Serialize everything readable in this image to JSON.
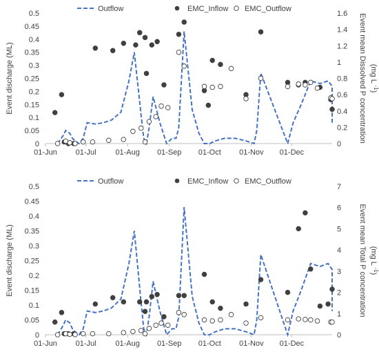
{
  "chart_data": [
    {
      "type": "line",
      "legend": [
        "Outflow",
        "EMC_Inflow",
        "EMC_Outflow"
      ],
      "legend_position": "top",
      "x_ticks": [
        "01-Jun",
        "01-Jul",
        "01-Aug",
        "01-Sep",
        "01-Oct",
        "01-Nov",
        "01-Dec"
      ],
      "xlim": [
        "2019-06-01",
        "2019-12-31"
      ],
      "ylabel": "Event discharge (ML)",
      "ylim": [
        0,
        0.5
      ],
      "y_ticks": [
        "0",
        "0.05",
        "0.1",
        "0.15",
        "0.2",
        "0.25",
        "0.3",
        "0.35",
        "0.4",
        "0.45",
        "0.5"
      ],
      "y2label": "Event mean Dissolved P concentration",
      "y2unit_prefix": "(mg L",
      "y2unit_sup": "-1",
      "y2unit_suffix": ")",
      "y2lim": [
        0,
        1.6
      ],
      "y2_ticks": [
        "0",
        "0.2",
        "0.4",
        "0.6",
        "0.8",
        "1",
        "1.2",
        "1.4",
        "1.6"
      ],
      "grid": false,
      "series": [
        {
          "name": "Outflow",
          "style": "dashed-line",
          "color": "#4472C4",
          "axis": "left",
          "points": [
            [
              "2019-06-10",
              0.0
            ],
            [
              "2019-06-14",
              0.03
            ],
            [
              "2019-06-16",
              0.05
            ],
            [
              "2019-06-19",
              0.04
            ],
            [
              "2019-06-21",
              0.02
            ],
            [
              "2019-06-23",
              0.01
            ],
            [
              "2019-06-26",
              0.0
            ],
            [
              "2019-06-29",
              0.02
            ],
            [
              "2019-07-02",
              0.08
            ],
            [
              "2019-07-08",
              0.075
            ],
            [
              "2019-07-14",
              0.08
            ],
            [
              "2019-07-20",
              0.09
            ],
            [
              "2019-07-27",
              0.12
            ],
            [
              "2019-08-02",
              0.24
            ],
            [
              "2019-08-06",
              0.35
            ],
            [
              "2019-08-11",
              0.11
            ],
            [
              "2019-08-13",
              0.02
            ],
            [
              "2019-08-15",
              0.0
            ],
            [
              "2019-08-17",
              0.06
            ],
            [
              "2019-08-20",
              0.18
            ],
            [
              "2019-08-25",
              0.08
            ],
            [
              "2019-08-30",
              0.0
            ],
            [
              "2019-09-03",
              0.02
            ],
            [
              "2019-09-06",
              0.02
            ],
            [
              "2019-09-08",
              0.06
            ],
            [
              "2019-09-12",
              0.43
            ],
            [
              "2019-09-18",
              0.13
            ],
            [
              "2019-09-23",
              0.04
            ],
            [
              "2019-09-27",
              0.0
            ],
            [
              "2019-10-01",
              0.0
            ],
            [
              "2019-10-05",
              0.01
            ],
            [
              "2019-10-12",
              0.02
            ],
            [
              "2019-10-20",
              0.02
            ],
            [
              "2019-10-28",
              0.01
            ],
            [
              "2019-11-03",
              0.0
            ],
            [
              "2019-11-05",
              0.05
            ],
            [
              "2019-11-08",
              0.27
            ],
            [
              "2019-11-28",
              0.0
            ],
            [
              "2019-12-02",
              0.08
            ],
            [
              "2019-12-08",
              0.15
            ],
            [
              "2019-12-15",
              0.24
            ],
            [
              "2019-12-22",
              0.23
            ],
            [
              "2019-12-28",
              0.24
            ],
            [
              "2019-12-31",
              0.22
            ],
            [
              "2019-12-31",
              0.08
            ]
          ]
        },
        {
          "name": "EMC_Inflow",
          "style": "filled-marker",
          "color": "#404040",
          "axis": "right",
          "points": [
            [
              "2019-06-08",
              0.38
            ],
            [
              "2019-06-13",
              0.6
            ],
            [
              "2019-06-15",
              0.02
            ],
            [
              "2019-06-18",
              0.0
            ],
            [
              "2019-06-22",
              0.0
            ],
            [
              "2019-07-08",
              1.17
            ],
            [
              "2019-07-21",
              1.14
            ],
            [
              "2019-07-29",
              1.23
            ],
            [
              "2019-08-07",
              1.21
            ],
            [
              "2019-08-10",
              1.36
            ],
            [
              "2019-08-14",
              1.3
            ],
            [
              "2019-08-15",
              0.86
            ],
            [
              "2019-08-19",
              1.21
            ],
            [
              "2019-08-23",
              1.25
            ],
            [
              "2019-08-28",
              0.72
            ],
            [
              "2019-09-08",
              1.34
            ],
            [
              "2019-09-12",
              1.49
            ],
            [
              "2019-09-27",
              0.65
            ],
            [
              "2019-09-30",
              0.47
            ],
            [
              "2019-10-03",
              1.02
            ],
            [
              "2019-10-09",
              0.97
            ],
            [
              "2019-10-28",
              0.6
            ],
            [
              "2019-11-08",
              1.37
            ],
            [
              "2019-11-28",
              0.75
            ],
            [
              "2019-12-06",
              0.72
            ],
            [
              "2019-12-11",
              0.75
            ],
            [
              "2019-12-22",
              0.69
            ],
            [
              "2019-12-30",
              0.54
            ],
            [
              "2019-12-31",
              0.42
            ]
          ]
        },
        {
          "name": "EMC_Outflow",
          "style": "hollow-marker",
          "color": "#404040",
          "axis": "right",
          "points": [
            [
              "2019-06-10",
              0.0
            ],
            [
              "2019-06-16",
              0.03
            ],
            [
              "2019-06-19",
              0.01
            ],
            [
              "2019-06-23",
              0.0
            ],
            [
              "2019-06-29",
              0.02
            ],
            [
              "2019-07-06",
              0.02
            ],
            [
              "2019-07-18",
              0.04
            ],
            [
              "2019-07-29",
              0.05
            ],
            [
              "2019-08-05",
              0.15
            ],
            [
              "2019-08-11",
              0.19
            ],
            [
              "2019-08-14",
              0.02
            ],
            [
              "2019-08-17",
              0.27
            ],
            [
              "2019-08-22",
              0.33
            ],
            [
              "2019-08-26",
              0.46
            ],
            [
              "2019-08-31",
              0.44
            ],
            [
              "2019-09-08",
              1.12
            ],
            [
              "2019-09-12",
              0.95
            ],
            [
              "2019-09-27",
              0.7
            ],
            [
              "2019-10-03",
              0.69
            ],
            [
              "2019-10-09",
              0.7
            ],
            [
              "2019-10-17",
              0.92
            ],
            [
              "2019-10-28",
              0.55
            ],
            [
              "2019-11-08",
              0.8
            ],
            [
              "2019-11-28",
              0.7
            ],
            [
              "2019-12-06",
              0.73
            ],
            [
              "2019-12-11",
              0.72
            ],
            [
              "2019-12-15",
              0.75
            ],
            [
              "2019-12-20",
              0.68
            ],
            [
              "2019-12-30",
              0.56
            ],
            [
              "2019-12-31",
              0.55
            ]
          ]
        }
      ]
    },
    {
      "type": "line",
      "legend": [
        "Outflow",
        "EMC_Inflow",
        "EMC_Outflow"
      ],
      "legend_position": "top",
      "x_ticks": [
        "01-Jun",
        "01-Jul",
        "01-Aug",
        "01-Sep",
        "01-Oct",
        "01-Nov",
        "01-Dec"
      ],
      "xlim": [
        "2019-06-01",
        "2019-12-31"
      ],
      "ylabel": "Event discharge (ML)",
      "ylim": [
        0,
        0.5
      ],
      "y_ticks": [
        "0",
        "0.05",
        "0.1",
        "0.15",
        "0.2",
        "0.25",
        "0.3",
        "0.35",
        "0.4",
        "0.45",
        "0.5"
      ],
      "y2label": "Event mean Total P concentration",
      "y2unit_prefix": "(mg L",
      "y2unit_sup": "-1",
      "y2unit_suffix": ")",
      "y2lim": [
        0,
        7
      ],
      "y2_ticks": [
        "0",
        "1",
        "2",
        "3",
        "4",
        "5",
        "6",
        "7"
      ],
      "grid": false,
      "series": [
        {
          "name": "Outflow",
          "style": "dashed-line",
          "color": "#4472C4",
          "axis": "left",
          "points": [
            [
              "2019-06-10",
              0.0
            ],
            [
              "2019-06-14",
              0.03
            ],
            [
              "2019-06-16",
              0.05
            ],
            [
              "2019-06-19",
              0.04
            ],
            [
              "2019-06-21",
              0.02
            ],
            [
              "2019-06-23",
              0.01
            ],
            [
              "2019-06-26",
              0.0
            ],
            [
              "2019-06-29",
              0.02
            ],
            [
              "2019-07-02",
              0.08
            ],
            [
              "2019-07-08",
              0.075
            ],
            [
              "2019-07-14",
              0.08
            ],
            [
              "2019-07-20",
              0.09
            ],
            [
              "2019-07-27",
              0.12
            ],
            [
              "2019-08-02",
              0.24
            ],
            [
              "2019-08-06",
              0.35
            ],
            [
              "2019-08-11",
              0.11
            ],
            [
              "2019-08-13",
              0.02
            ],
            [
              "2019-08-15",
              0.0
            ],
            [
              "2019-08-17",
              0.06
            ],
            [
              "2019-08-20",
              0.18
            ],
            [
              "2019-08-25",
              0.08
            ],
            [
              "2019-08-30",
              0.0
            ],
            [
              "2019-09-03",
              0.02
            ],
            [
              "2019-09-06",
              0.02
            ],
            [
              "2019-09-08",
              0.06
            ],
            [
              "2019-09-12",
              0.43
            ],
            [
              "2019-09-18",
              0.13
            ],
            [
              "2019-09-23",
              0.04
            ],
            [
              "2019-09-27",
              0.0
            ],
            [
              "2019-10-01",
              0.0
            ],
            [
              "2019-10-05",
              0.01
            ],
            [
              "2019-10-12",
              0.02
            ],
            [
              "2019-10-20",
              0.02
            ],
            [
              "2019-10-28",
              0.01
            ],
            [
              "2019-11-03",
              0.0
            ],
            [
              "2019-11-05",
              0.05
            ],
            [
              "2019-11-08",
              0.27
            ],
            [
              "2019-11-28",
              0.0
            ],
            [
              "2019-12-02",
              0.08
            ],
            [
              "2019-12-08",
              0.15
            ],
            [
              "2019-12-15",
              0.24
            ],
            [
              "2019-12-22",
              0.23
            ],
            [
              "2019-12-28",
              0.24
            ],
            [
              "2019-12-31",
              0.22
            ],
            [
              "2019-12-31",
              0.08
            ]
          ]
        },
        {
          "name": "EMC_Inflow",
          "style": "filled-marker",
          "color": "#404040",
          "axis": "right",
          "points": [
            [
              "2019-06-08",
              0.6
            ],
            [
              "2019-06-13",
              1.05
            ],
            [
              "2019-06-15",
              0.05
            ],
            [
              "2019-06-18",
              0.05
            ],
            [
              "2019-06-22",
              0.05
            ],
            [
              "2019-07-08",
              1.45
            ],
            [
              "2019-07-21",
              1.75
            ],
            [
              "2019-07-29",
              1.55
            ],
            [
              "2019-08-10",
              1.55
            ],
            [
              "2019-08-14",
              1.1
            ],
            [
              "2019-08-15",
              1.55
            ],
            [
              "2019-08-19",
              1.8
            ],
            [
              "2019-08-23",
              1.9
            ],
            [
              "2019-08-28",
              0.85
            ],
            [
              "2019-09-08",
              1.85
            ],
            [
              "2019-09-12",
              1.85
            ],
            [
              "2019-09-27",
              2.85
            ],
            [
              "2019-10-03",
              1.55
            ],
            [
              "2019-10-09",
              1.25
            ],
            [
              "2019-10-28",
              1.45
            ],
            [
              "2019-11-08",
              2.6
            ],
            [
              "2019-11-28",
              2.0
            ],
            [
              "2019-12-06",
              5.0
            ],
            [
              "2019-12-11",
              5.75
            ],
            [
              "2019-12-15",
              3.1
            ],
            [
              "2019-12-22",
              1.35
            ],
            [
              "2019-12-28",
              1.45
            ],
            [
              "2019-12-31",
              2.15
            ]
          ]
        },
        {
          "name": "EMC_Outflow",
          "style": "hollow-marker",
          "color": "#404040",
          "axis": "right",
          "points": [
            [
              "2019-06-10",
              0.0
            ],
            [
              "2019-06-16",
              0.05
            ],
            [
              "2019-06-19",
              0.02
            ],
            [
              "2019-06-23",
              0.01
            ],
            [
              "2019-06-29",
              0.05
            ],
            [
              "2019-07-06",
              0.05
            ],
            [
              "2019-07-18",
              0.05
            ],
            [
              "2019-07-29",
              0.1
            ],
            [
              "2019-08-05",
              0.15
            ],
            [
              "2019-08-11",
              0.2
            ],
            [
              "2019-08-14",
              0.05
            ],
            [
              "2019-08-17",
              0.3
            ],
            [
              "2019-08-22",
              0.45
            ],
            [
              "2019-08-26",
              0.55
            ],
            [
              "2019-08-31",
              0.45
            ],
            [
              "2019-09-08",
              1.05
            ],
            [
              "2019-09-12",
              0.95
            ],
            [
              "2019-09-27",
              0.7
            ],
            [
              "2019-10-03",
              0.65
            ],
            [
              "2019-10-09",
              0.7
            ],
            [
              "2019-10-17",
              0.95
            ],
            [
              "2019-10-28",
              0.55
            ],
            [
              "2019-11-08",
              0.8
            ],
            [
              "2019-11-28",
              0.7
            ],
            [
              "2019-12-06",
              0.75
            ],
            [
              "2019-12-11",
              0.72
            ],
            [
              "2019-12-15",
              0.7
            ],
            [
              "2019-12-20",
              0.65
            ],
            [
              "2019-12-30",
              0.6
            ],
            [
              "2019-12-31",
              0.6
            ]
          ]
        }
      ]
    }
  ]
}
